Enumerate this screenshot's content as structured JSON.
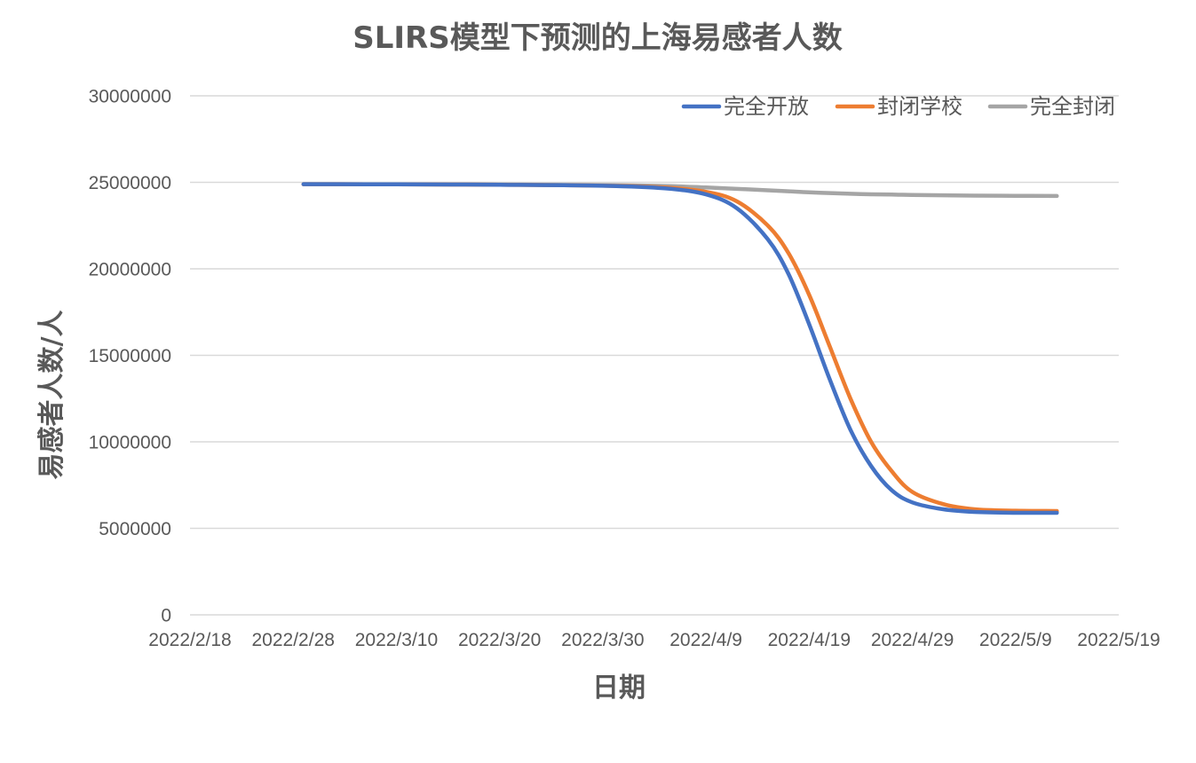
{
  "chart_data": {
    "type": "line",
    "title": "SLIRS模型下预测的上海易感者人数",
    "xlabel": "日期",
    "ylabel": "易感者人数/人",
    "x_axis_type": "date",
    "xlim": [
      "2022-02-18",
      "2022-05-19"
    ],
    "xticks": [
      "2022-02-18",
      "2022-02-28",
      "2022-03-10",
      "2022-03-20",
      "2022-03-30",
      "2022-04-09",
      "2022-04-19",
      "2022-04-29",
      "2022-05-09",
      "2022-05-19"
    ],
    "xtick_labels": [
      "2022/2/18",
      "2022/2/28",
      "2022/3/10",
      "2022/3/20",
      "2022/3/30",
      "2022/4/9",
      "2022/4/19",
      "2022/4/29",
      "2022/5/9",
      "2022/5/19"
    ],
    "ylim": [
      0,
      30000000
    ],
    "yticks": [
      0,
      5000000,
      10000000,
      15000000,
      20000000,
      25000000,
      30000000
    ],
    "ytick_labels": [
      "0",
      "5000000",
      "10000000",
      "15000000",
      "20000000",
      "25000000",
      "30000000"
    ],
    "grid": true,
    "legend_position": "top-right",
    "x": [
      "2022-03-01",
      "2022-03-10",
      "2022-03-20",
      "2022-03-30",
      "2022-04-05",
      "2022-04-09",
      "2022-04-12",
      "2022-04-15",
      "2022-04-17",
      "2022-04-19",
      "2022-04-21",
      "2022-04-23",
      "2022-04-25",
      "2022-04-27",
      "2022-04-29",
      "2022-05-02",
      "2022-05-05",
      "2022-05-09",
      "2022-05-13"
    ],
    "series": [
      {
        "name": "完全开放",
        "color": "#4472c4",
        "values": [
          24890000,
          24880000,
          24860000,
          24800000,
          24650000,
          24300000,
          23500000,
          21700000,
          19700000,
          16800000,
          13600000,
          10700000,
          8600000,
          7200000,
          6500000,
          6100000,
          5950000,
          5900000,
          5900000
        ]
      },
      {
        "name": "封闭学校",
        "color": "#ed7d31",
        "values": [
          24890000,
          24880000,
          24860000,
          24810000,
          24700000,
          24450000,
          23900000,
          22500000,
          20900000,
          18500000,
          15500000,
          12500000,
          10000000,
          8300000,
          7100000,
          6400000,
          6100000,
          6020000,
          6000000
        ]
      },
      {
        "name": "完全封闭",
        "color": "#a5a5a5",
        "values": [
          24890000,
          24880000,
          24870000,
          24840000,
          24790000,
          24700000,
          24620000,
          24540000,
          24480000,
          24420000,
          24380000,
          24340000,
          24310000,
          24290000,
          24270000,
          24250000,
          24230000,
          24220000,
          24210000
        ]
      }
    ]
  }
}
